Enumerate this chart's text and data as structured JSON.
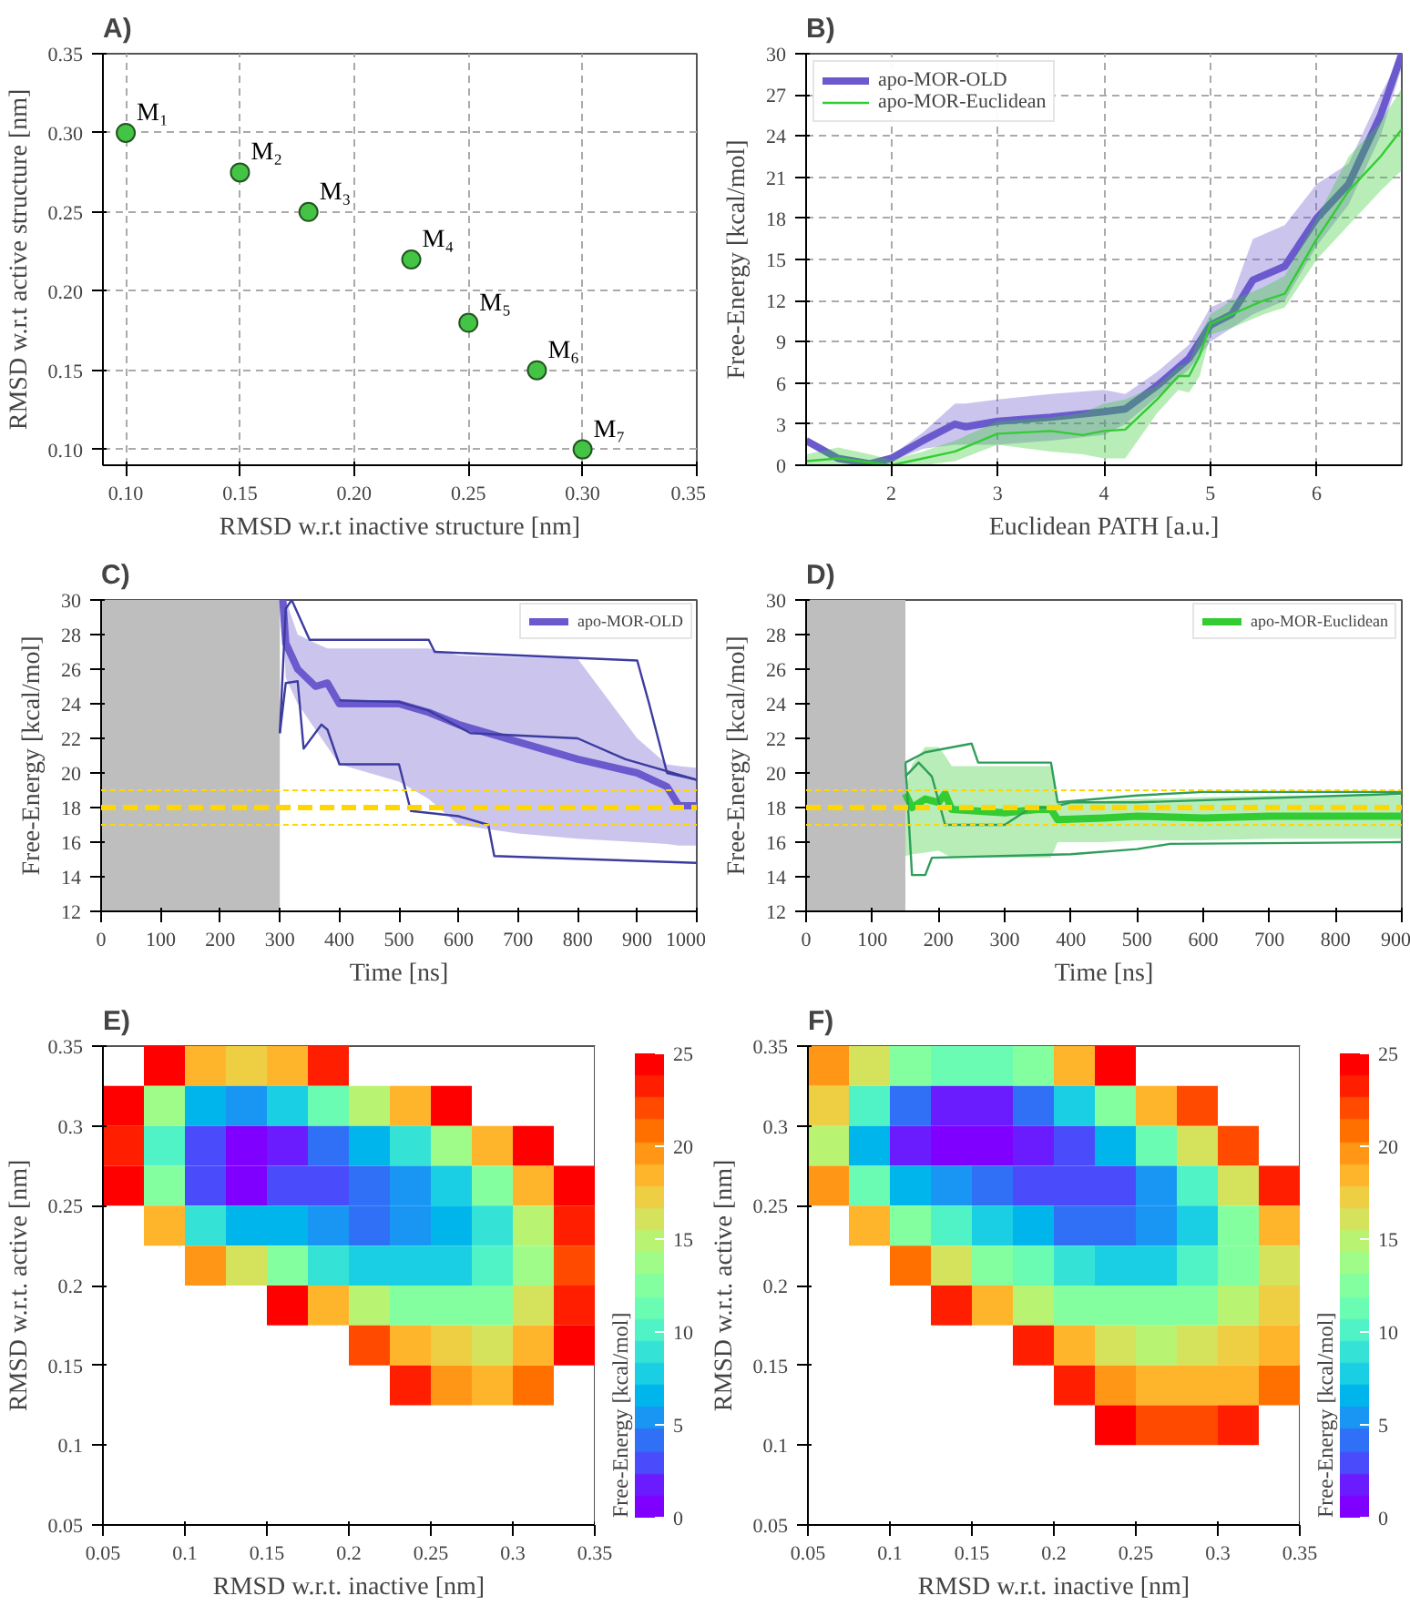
{
  "chart_data": [
    {
      "type": "scatter",
      "title": "A)",
      "xlabel": "RMSD w.r.t inactive structure [nm]",
      "ylabel": "RMSD w.r.t active structure [nm]",
      "marker": "circle",
      "grid": true,
      "xlim": [
        0.09,
        0.35
      ],
      "ylim": [
        0.09,
        0.35
      ],
      "xticks": [
        {
          "value": 0.1,
          "label": "0.10"
        },
        {
          "value": 0.15,
          "label": "0.15"
        },
        {
          "value": 0.2,
          "label": "0.20"
        },
        {
          "value": 0.25,
          "label": "0.25"
        },
        {
          "value": 0.3,
          "label": "0.30"
        },
        {
          "value": 0.35,
          "label": "0.35"
        }
      ],
      "yticks": [
        {
          "value": 0.1,
          "label": "0.10"
        },
        {
          "value": 0.15,
          "label": "0.15"
        },
        {
          "value": 0.2,
          "label": "0.20"
        },
        {
          "value": 0.25,
          "label": "0.25"
        },
        {
          "value": 0.3,
          "label": "0.30"
        },
        {
          "value": 0.35,
          "label": "0.35"
        }
      ],
      "series": [
        {
          "color": "#44c444",
          "x": [
            0.1,
            0.15,
            0.18,
            0.225,
            0.25,
            0.28,
            0.3
          ],
          "values": [
            0.3,
            0.275,
            0.25,
            0.22,
            0.18,
            0.15,
            0.1
          ]
        }
      ],
      "annotations": [
        {
          "text": "M₁",
          "x": 0.1,
          "y": 0.3
        },
        {
          "text": "M₂",
          "x": 0.15,
          "y": 0.275
        },
        {
          "text": "M₃",
          "x": 0.18,
          "y": 0.25
        },
        {
          "text": "M₄",
          "x": 0.225,
          "y": 0.22
        },
        {
          "text": "M₅",
          "x": 0.25,
          "y": 0.18
        },
        {
          "text": "M₆",
          "x": 0.28,
          "y": 0.15
        },
        {
          "text": "M₇",
          "x": 0.3,
          "y": 0.1
        }
      ]
    },
    {
      "type": "line",
      "title": "B)",
      "xlabel": "Euclidean PATH [a.u.]",
      "ylabel": "Free-Energy [kcal/mol]",
      "grid": true,
      "legend": "top left",
      "xlim": [
        1.2,
        6.8
      ],
      "ylim": [
        0,
        30
      ],
      "xticks": [
        2,
        3,
        4,
        5,
        6
      ],
      "yticks": [
        0,
        3,
        6,
        9,
        12,
        15,
        18,
        21,
        24,
        27,
        30
      ],
      "series": [
        {
          "name": "apo-MOR-OLD",
          "color": "#6a5acd",
          "x": [
            1.2,
            1.5,
            1.8,
            2.0,
            2.3,
            2.6,
            2.7,
            3.0,
            3.5,
            4.0,
            4.2,
            4.5,
            4.8,
            5.0,
            5.2,
            5.4,
            5.7,
            6.0,
            6.3,
            6.6,
            6.8
          ],
          "values": [
            1.8,
            0.5,
            0.1,
            0.5,
            1.8,
            3.0,
            2.8,
            3.2,
            3.5,
            3.9,
            4.1,
            5.8,
            7.8,
            10.2,
            11.0,
            13.5,
            14.5,
            18.0,
            20.5,
            25.5,
            30.0
          ],
          "lower": [
            1.8,
            0.5,
            0.1,
            0.3,
            1.2,
            1.5,
            1.5,
            1.5,
            1.8,
            2.2,
            3.0,
            5.0,
            7.0,
            9.0,
            10.0,
            11.0,
            12.0,
            16.0,
            19.0,
            24.0,
            29.0
          ],
          "upper": [
            1.8,
            0.5,
            0.1,
            0.7,
            2.4,
            4.5,
            4.5,
            4.8,
            5.2,
            5.5,
            5.2,
            6.8,
            8.8,
            11.5,
            12.2,
            16.5,
            17.5,
            20.5,
            22.0,
            27.0,
            30.0
          ]
        },
        {
          "name": "apo-MOR-Euclidean",
          "color": "#33cc33",
          "x": [
            1.2,
            1.5,
            1.8,
            2.0,
            2.3,
            2.6,
            3.0,
            3.5,
            3.8,
            4.0,
            4.2,
            4.5,
            4.7,
            4.8,
            4.9,
            5.0,
            5.2,
            5.5,
            5.7,
            6.0,
            6.3,
            6.6,
            6.8
          ],
          "values": [
            0.3,
            0.5,
            0.2,
            0.0,
            0.5,
            1.0,
            2.3,
            2.5,
            2.2,
            2.5,
            2.6,
            4.8,
            6.5,
            6.5,
            8.0,
            10.3,
            11.0,
            12.0,
            12.5,
            16.5,
            20.0,
            22.5,
            24.5
          ],
          "lower": [
            0.0,
            0.0,
            0.0,
            0.0,
            0.0,
            0.3,
            1.5,
            1.0,
            0.8,
            0.5,
            0.5,
            3.8,
            5.5,
            5.3,
            6.5,
            9.5,
            10.0,
            11.0,
            11.5,
            15.0,
            17.5,
            20.0,
            21.5
          ],
          "upper": [
            0.8,
            1.3,
            0.8,
            0.4,
            1.0,
            1.8,
            3.2,
            3.5,
            3.8,
            4.5,
            4.8,
            5.8,
            7.2,
            7.5,
            9.5,
            11.0,
            12.0,
            13.0,
            13.8,
            18.0,
            22.5,
            25.0,
            27.5
          ]
        }
      ]
    },
    {
      "type": "line",
      "title": "C)",
      "xlabel": "Time [ns]",
      "ylabel": "Free-Energy [kcal/mol]",
      "legend": "top right",
      "xlim": [
        0,
        1000
      ],
      "ylim": [
        12,
        30
      ],
      "xticks": [
        0,
        100,
        200,
        300,
        400,
        500,
        600,
        700,
        800,
        900,
        1000
      ],
      "yticks": [
        12,
        14,
        16,
        18,
        20,
        22,
        24,
        26,
        28,
        30
      ],
      "bands": [
        {
          "axis": "x",
          "from": 0,
          "to": 300,
          "color": "#bebebe"
        }
      ],
      "ref_lines": [
        {
          "axis": "y",
          "value": 18,
          "color": "#ffd700",
          "line_style": "dashed"
        },
        {
          "axis": "y",
          "value": 17,
          "color": "#ffd700",
          "line_style": "dotted"
        },
        {
          "axis": "y",
          "value": 19,
          "color": "#ffd700",
          "line_style": "dotted"
        }
      ],
      "series": [
        {
          "name": "apo-MOR-OLD",
          "color": "#6a5acd",
          "x": [
            305,
            310,
            330,
            360,
            380,
            400,
            500,
            550,
            600,
            700,
            800,
            900,
            950,
            970,
            1000
          ],
          "values": [
            30.0,
            27.5,
            26.0,
            25.0,
            25.2,
            24.0,
            24.0,
            23.5,
            22.8,
            21.8,
            20.8,
            20.0,
            19.2,
            18.1,
            18.1
          ],
          "lower": [
            29.0,
            25.5,
            24.0,
            22.5,
            21.5,
            20.5,
            19.5,
            18.5,
            17.0,
            16.5,
            16.2,
            16.0,
            15.9,
            15.8,
            15.8
          ],
          "upper": [
            30.0,
            30.0,
            28.0,
            27.5,
            27.2,
            27.2,
            27.2,
            27.2,
            26.8,
            26.7,
            26.6,
            22.0,
            20.5,
            20.4,
            20.3
          ]
        },
        {
          "color": "#3c3ca0",
          "x": [
            300,
            310,
            320,
            350,
            550,
            560,
            900,
            920,
            950,
            1000
          ],
          "values": [
            22.3,
            29.5,
            30.0,
            27.7,
            27.7,
            27.0,
            26.5,
            24.0,
            20.0,
            19.6
          ]
        },
        {
          "color": "#3c3ca0",
          "x": [
            400,
            500,
            550,
            620,
            800,
            880,
            1000
          ],
          "values": [
            24.2,
            24.1,
            23.6,
            22.3,
            22.0,
            20.8,
            19.6
          ]
        },
        {
          "color": "#3c3ca0",
          "x": [
            300,
            310,
            330,
            340,
            370,
            380,
            400,
            500,
            520,
            600,
            650,
            660,
            1000
          ],
          "values": [
            22.3,
            25.2,
            25.3,
            21.4,
            22.8,
            22.5,
            20.5,
            20.5,
            17.8,
            17.5,
            17.0,
            15.2,
            14.8
          ]
        }
      ]
    },
    {
      "type": "line",
      "title": "D)",
      "xlabel": "Time [ns]",
      "ylabel": "Free-Energy [kcal/mol]",
      "legend": "top right",
      "xlim": [
        0,
        900
      ],
      "ylim": [
        12,
        30
      ],
      "xticks": [
        0,
        100,
        200,
        300,
        400,
        500,
        600,
        700,
        800,
        900
      ],
      "yticks": [
        12,
        14,
        16,
        18,
        20,
        22,
        24,
        26,
        28,
        30
      ],
      "bands": [
        {
          "axis": "x",
          "from": 0,
          "to": 150,
          "color": "#bebebe"
        }
      ],
      "ref_lines": [
        {
          "axis": "y",
          "value": 18,
          "color": "#ffd700",
          "line_style": "dashed"
        },
        {
          "axis": "y",
          "value": 17,
          "color": "#ffd700",
          "line_style": "dotted"
        },
        {
          "axis": "y",
          "value": 19,
          "color": "#ffd700",
          "line_style": "dotted"
        }
      ],
      "series": [
        {
          "name": "apo-MOR-Euclidean",
          "color": "#33cc33",
          "x": [
            150,
            160,
            180,
            200,
            210,
            220,
            300,
            350,
            370,
            380,
            450,
            500,
            600,
            700,
            900
          ],
          "values": [
            18.8,
            18.0,
            18.5,
            18.3,
            18.8,
            17.9,
            17.7,
            17.9,
            17.9,
            17.3,
            17.4,
            17.5,
            17.4,
            17.5,
            17.5
          ],
          "lower": [
            15.2,
            15.3,
            15.4,
            15.5,
            15.3,
            15.1,
            15.1,
            15.1,
            15.1,
            16.0,
            16.0,
            16.1,
            16.1,
            16.2,
            16.2
          ],
          "upper": [
            19.0,
            20.5,
            21.5,
            21.5,
            21.0,
            20.4,
            20.4,
            20.4,
            20.4,
            18.3,
            18.4,
            18.5,
            18.6,
            18.7,
            18.7
          ]
        },
        {
          "color": "#2e9e5a",
          "x": [
            150,
            180,
            250,
            260,
            370,
            380,
            500,
            600,
            900
          ],
          "values": [
            20.6,
            21.2,
            21.7,
            20.6,
            20.6,
            18.3,
            18.7,
            18.9,
            18.9
          ]
        },
        {
          "color": "#2e9e5a",
          "x": [
            150,
            170,
            190,
            210,
            300,
            340,
            370,
            400,
            500,
            900
          ],
          "values": [
            19.8,
            20.6,
            19.8,
            17.0,
            17.0,
            18.0,
            18.0,
            18.3,
            18.3,
            18.8
          ]
        },
        {
          "color": "#2e9e5a",
          "x": [
            150,
            160,
            180,
            190,
            400,
            500,
            550,
            900
          ],
          "values": [
            20.6,
            14.1,
            14.1,
            15.1,
            15.3,
            15.6,
            15.9,
            16.0
          ]
        }
      ]
    },
    {
      "type": "heatmap",
      "title": "E)",
      "xlabel": "RMSD w.r.t. inactive [nm]",
      "ylabel": "RMSD w.r.t. active [nm]",
      "clabel": "Free-Energy [kcal/mol]",
      "xlim": [
        0.05,
        0.35
      ],
      "ylim": [
        0.05,
        0.35
      ],
      "xticks": [
        0.05,
        0.1,
        0.15,
        0.2,
        0.25,
        0.3,
        0.35
      ],
      "yticks": [
        0.05,
        0.1,
        0.15,
        0.2,
        0.25,
        0.3,
        0.35
      ],
      "clim": [
        0,
        25
      ],
      "cticks": [
        0,
        5,
        10,
        15,
        20,
        25
      ],
      "x": [
        0.0625,
        0.0875,
        0.1125,
        0.1375,
        0.1625,
        0.1875,
        0.2125,
        0.2375,
        0.2625,
        0.2875,
        0.3125,
        0.3375
      ],
      "y": [
        0.3375,
        0.3125,
        0.2875,
        0.2625,
        0.2375,
        0.2125,
        0.1875,
        0.1625,
        0.1375
      ],
      "cells": [
        [
          null,
          24,
          19,
          17,
          19,
          23,
          null,
          null,
          null,
          null,
          null,
          null
        ],
        [
          25,
          14,
          7,
          5,
          8,
          11,
          15,
          19,
          24,
          null,
          null,
          null
        ],
        [
          23,
          10,
          3,
          0.5,
          2,
          4,
          6,
          9,
          14,
          19,
          24,
          null
        ],
        [
          24,
          12,
          3,
          1,
          3,
          3.5,
          4,
          5,
          8,
          12,
          18,
          24
        ],
        [
          null,
          19,
          9,
          7,
          6,
          5,
          4.5,
          5,
          6,
          9,
          15,
          23
        ],
        [
          null,
          null,
          20,
          16,
          12,
          9,
          8,
          7.5,
          8,
          10,
          14,
          22
        ],
        [
          null,
          null,
          null,
          null,
          24,
          18,
          15,
          13,
          12,
          13,
          16,
          23
        ],
        [
          null,
          null,
          null,
          null,
          null,
          null,
          22,
          19,
          17,
          16,
          18,
          24
        ],
        [
          null,
          null,
          null,
          null,
          null,
          null,
          null,
          23,
          20,
          19,
          21,
          null
        ]
      ]
    },
    {
      "type": "heatmap",
      "title": "F)",
      "xlabel": "RMSD w.r.t. inactive [nm]",
      "ylabel": "RMSD w.r.t. active [nm]",
      "clabel": "Free-Energy [kcal/mol]",
      "xlim": [
        0.05,
        0.35
      ],
      "ylim": [
        0.05,
        0.35
      ],
      "xticks": [
        0.05,
        0.1,
        0.15,
        0.2,
        0.25,
        0.3,
        0.35
      ],
      "yticks": [
        0.05,
        0.1,
        0.15,
        0.2,
        0.25,
        0.3,
        0.35
      ],
      "clim": [
        0,
        25
      ],
      "cticks": [
        0,
        5,
        10,
        15,
        20,
        25
      ],
      "x": [
        0.0625,
        0.0875,
        0.1125,
        0.1375,
        0.1625,
        0.1875,
        0.2125,
        0.2375,
        0.2625,
        0.2875,
        0.3125,
        0.3375
      ],
      "y": [
        0.3375,
        0.3125,
        0.2875,
        0.2625,
        0.2375,
        0.2125,
        0.1875,
        0.1625,
        0.1375,
        0.1125
      ],
      "cells": [
        [
          20,
          16,
          12,
          11,
          11,
          13,
          18,
          24,
          null,
          null,
          null,
          null
        ],
        [
          17,
          10,
          4,
          2,
          2,
          4,
          8,
          13,
          18,
          22,
          null,
          null
        ],
        [
          15,
          7,
          2,
          1,
          0.5,
          1.5,
          3.5,
          6,
          11,
          16,
          22,
          null
        ],
        [
          20,
          11,
          7,
          5,
          4,
          3,
          3,
          3.5,
          5,
          10,
          16,
          23
        ],
        [
          null,
          18,
          13,
          10,
          8,
          6,
          4,
          4,
          5,
          8,
          13,
          18
        ],
        [
          null,
          null,
          21,
          16,
          13,
          11,
          9,
          8,
          8,
          10,
          13,
          16
        ],
        [
          null,
          null,
          null,
          23,
          19,
          15,
          13,
          12,
          12,
          13,
          15,
          17
        ],
        [
          null,
          null,
          null,
          null,
          null,
          23,
          18,
          16,
          15,
          16,
          17,
          19
        ],
        [
          null,
          null,
          null,
          null,
          null,
          null,
          23,
          20,
          18,
          18,
          19,
          21
        ],
        [
          null,
          null,
          null,
          null,
          null,
          null,
          null,
          24,
          22,
          22,
          23,
          null
        ]
      ]
    }
  ]
}
